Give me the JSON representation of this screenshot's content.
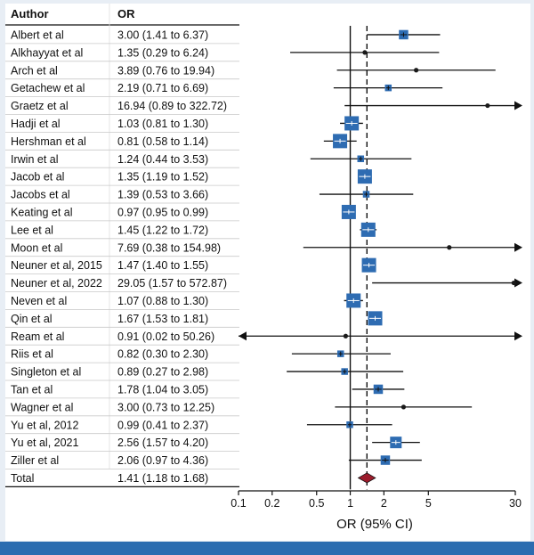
{
  "chart_data": {
    "type": "forest",
    "columns": {
      "author": "Author",
      "or": "OR"
    },
    "rows": [
      {
        "author": "Albert et al",
        "or_text": "3.00 (1.41 to 6.37)",
        "or": 3.0,
        "lo": 1.41,
        "hi": 6.37,
        "weight": 3
      },
      {
        "author": "Alkhayyat et al",
        "or_text": "1.35 (0.29 to 6.24)",
        "or": 1.35,
        "lo": 0.29,
        "hi": 6.24,
        "weight": 1
      },
      {
        "author": "Arch et al",
        "or_text": "3.89 (0.76 to 19.94)",
        "or": 3.89,
        "lo": 0.76,
        "hi": 19.94,
        "weight": 1
      },
      {
        "author": "Getachew et al",
        "or_text": "2.19 (0.71 to 6.69)",
        "or": 2.19,
        "lo": 0.71,
        "hi": 6.69,
        "weight": 2
      },
      {
        "author": "Graetz et al",
        "or_text": "16.94 (0.89 to 322.72)",
        "or": 16.94,
        "lo": 0.89,
        "hi": 322.72,
        "weight": 1
      },
      {
        "author": "Hadji et al",
        "or_text": "1.03 (0.81 to 1.30)",
        "or": 1.03,
        "lo": 0.81,
        "hi": 1.3,
        "weight": 5
      },
      {
        "author": "Hershman et al",
        "or_text": "0.81 (0.58 to 1.14)",
        "or": 0.81,
        "lo": 0.58,
        "hi": 1.14,
        "weight": 5
      },
      {
        "author": "Irwin et al",
        "or_text": "1.24 (0.44 to 3.53)",
        "or": 1.24,
        "lo": 0.44,
        "hi": 3.53,
        "weight": 2
      },
      {
        "author": "Jacob et al",
        "or_text": "1.35 (1.19 to 1.52)",
        "or": 1.35,
        "lo": 1.19,
        "hi": 1.52,
        "weight": 5
      },
      {
        "author": "Jacobs et al",
        "or_text": "1.39 (0.53 to 3.66)",
        "or": 1.39,
        "lo": 0.53,
        "hi": 3.66,
        "weight": 2
      },
      {
        "author": "Keating et al",
        "or_text": "0.97 (0.95 to 0.99)",
        "or": 0.97,
        "lo": 0.95,
        "hi": 0.99,
        "weight": 5
      },
      {
        "author": "Lee et al",
        "or_text": "1.45 (1.22 to 1.72)",
        "or": 1.45,
        "lo": 1.22,
        "hi": 1.72,
        "weight": 5
      },
      {
        "author": "Moon et al",
        "or_text": "7.69 (0.38 to 154.98)",
        "or": 7.69,
        "lo": 0.38,
        "hi": 154.98,
        "weight": 1
      },
      {
        "author": "Neuner et al, 2015",
        "or_text": "1.47 (1.40 to 1.55)",
        "or": 1.47,
        "lo": 1.4,
        "hi": 1.55,
        "weight": 5
      },
      {
        "author": "Neuner et al, 2022",
        "or_text": "29.05 (1.57 to 572.87)",
        "or": 29.05,
        "lo": 1.57,
        "hi": 572.87,
        "weight": 1
      },
      {
        "author": "Neven et al",
        "or_text": "1.07 (0.88 to 1.30)",
        "or": 1.07,
        "lo": 0.88,
        "hi": 1.3,
        "weight": 5
      },
      {
        "author": "Qin et al",
        "or_text": "1.67 (1.53 to 1.81)",
        "or": 1.67,
        "lo": 1.53,
        "hi": 1.81,
        "weight": 5
      },
      {
        "author": "Ream et al",
        "or_text": "0.91 (0.02 to 50.26)",
        "or": 0.91,
        "lo": 0.02,
        "hi": 50.26,
        "weight": 1
      },
      {
        "author": "Riis et al",
        "or_text": "0.82 (0.30 to 2.30)",
        "or": 0.82,
        "lo": 0.3,
        "hi": 2.3,
        "weight": 2
      },
      {
        "author": "Singleton et al",
        "or_text": "0.89 (0.27 to 2.98)",
        "or": 0.89,
        "lo": 0.27,
        "hi": 2.98,
        "weight": 2
      },
      {
        "author": "Tan et al",
        "or_text": "1.78 (1.04 to 3.05)",
        "or": 1.78,
        "lo": 1.04,
        "hi": 3.05,
        "weight": 3
      },
      {
        "author": "Wagner et al",
        "or_text": "3.00 (0.73 to 12.25)",
        "or": 3.0,
        "lo": 0.73,
        "hi": 12.25,
        "weight": 1
      },
      {
        "author": "Yu et al, 2012",
        "or_text": "0.99 (0.41 to 2.37)",
        "or": 0.99,
        "lo": 0.41,
        "hi": 2.37,
        "weight": 2
      },
      {
        "author": "Yu et al, 2021",
        "or_text": "2.56 (1.57 to 4.20)",
        "or": 2.56,
        "lo": 1.57,
        "hi": 4.2,
        "weight": 4
      },
      {
        "author": "Ziller et al",
        "or_text": "2.06 (0.97 to 4.36)",
        "or": 2.06,
        "lo": 0.97,
        "hi": 4.36,
        "weight": 3
      }
    ],
    "total": {
      "author": "Total",
      "or_text": "1.41 (1.18 to 1.68)",
      "or": 1.41,
      "lo": 1.18,
      "hi": 1.68
    },
    "x_axis": {
      "label": "OR (95% CI)",
      "scale": "log",
      "range": [
        0.1,
        30
      ],
      "ticks": [
        {
          "value": 0.1,
          "label": "0.1"
        },
        {
          "value": 0.2,
          "label": "0.2"
        },
        {
          "value": 0.5,
          "label": "0.5"
        },
        {
          "value": 1,
          "label": "1"
        },
        {
          "value": 2,
          "label": "2"
        },
        {
          "value": 5,
          "label": "5"
        },
        {
          "value": 30,
          "label": "30"
        }
      ]
    },
    "null_line": 1,
    "pooled_line": 1.41
  },
  "colors": {
    "marker": "#2e6cb2",
    "total": "#9b1c2c",
    "frame": "#e8eef5",
    "bar": "#2b6cb0",
    "text": "#111111"
  }
}
